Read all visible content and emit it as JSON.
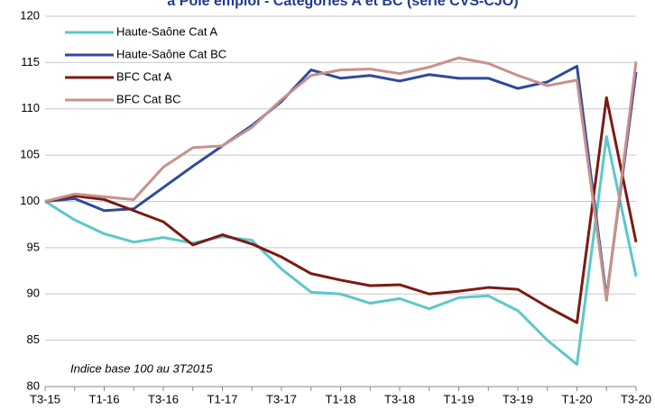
{
  "chart_data": {
    "type": "line",
    "title": "à Pôle emploi - Catégories A et BC (série CVS-CJO)",
    "annotation": "Indice base 100 au 3T2015",
    "categories": [
      "T3-15",
      null,
      "T1-16",
      null,
      "T3-16",
      null,
      "T1-17",
      null,
      "T3-17",
      null,
      "T1-18",
      null,
      "T3-18",
      null,
      "T1-19",
      null,
      "T3-19",
      null,
      "T1-20",
      null,
      "T3-20"
    ],
    "series": [
      {
        "name": "Haute-Saône  Cat A",
        "color": "#5cc8c8",
        "values": [
          100,
          98,
          96.5,
          95.6,
          96.1,
          95.5,
          96.2,
          95.8,
          92.7,
          90.2,
          90.0,
          89.0,
          89.5,
          88.4,
          89.6,
          89.8,
          88.2,
          85.0,
          82.4,
          107,
          91.9
        ]
      },
      {
        "name": "Haute-Saône  Cat BC",
        "color": "#2e4a9a",
        "values": [
          100,
          100.3,
          99.0,
          99.2,
          101.5,
          103.8,
          106,
          108.2,
          110.8,
          114.2,
          113.3,
          113.6,
          113.0,
          113.7,
          113.3,
          113.3,
          112.2,
          112.9,
          114.6,
          89.6,
          114.0
        ]
      },
      {
        "name": "BFC Cat A",
        "color": "#7b1a12",
        "values": [
          100,
          100.6,
          100.2,
          99.0,
          97.8,
          95.3,
          96.4,
          95.4,
          94.0,
          92.2,
          91.5,
          90.9,
          91.0,
          90.0,
          90.3,
          90.7,
          90.5,
          88.6,
          86.9,
          111.2,
          95.6
        ]
      },
      {
        "name": "BFC Cat BC",
        "color": "#c9918a",
        "values": [
          100,
          100.8,
          100.5,
          100.2,
          103.7,
          105.8,
          106.0,
          108.0,
          111.0,
          113.6,
          114.2,
          114.3,
          113.8,
          114.5,
          115.5,
          114.9,
          113.6,
          112.5,
          113.1,
          89.3,
          115.1
        ]
      }
    ],
    "ylim": [
      80,
      120
    ],
    "yticks": [
      80,
      85,
      90,
      95,
      100,
      105,
      110,
      115,
      120
    ],
    "grid": true
  }
}
